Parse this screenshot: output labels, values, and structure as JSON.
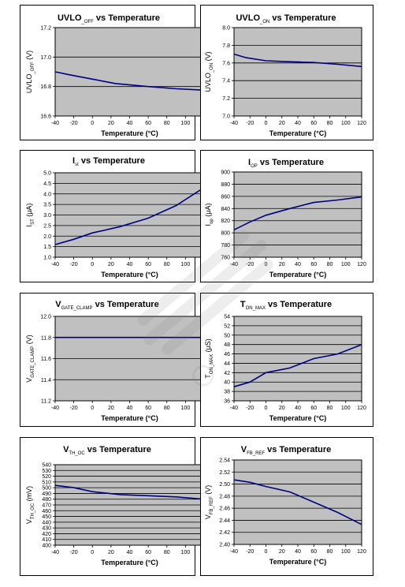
{
  "chart_data": [
    {
      "type": "line",
      "title_main": "UVLO",
      "title_sub": "_OFF",
      "title_rest": " vs Temperature",
      "ylabel_main": "UVLO",
      "ylabel_sub": "_OFF",
      "ylabel_unit": " (V)",
      "xlabel": "Temperature (°C)",
      "xlim": [
        -40,
        120
      ],
      "ylim": [
        16.6,
        17.2
      ],
      "yticks": [
        "16.6",
        "16.8",
        "17.0",
        "17.2"
      ],
      "xticks": [
        "-40",
        "-20",
        "0",
        "20",
        "40",
        "60",
        "80",
        "100",
        "120"
      ],
      "series": [
        {
          "x": [
            -40,
            -25,
            0,
            25,
            60,
            90,
            120
          ],
          "y": [
            16.9,
            16.88,
            16.85,
            16.82,
            16.8,
            16.785,
            16.775
          ]
        }
      ]
    },
    {
      "type": "line",
      "title_main": "UVLO",
      "title_sub": "_ON",
      "title_rest": "  vs Temperature",
      "ylabel_main": "UVLO",
      "ylabel_sub": "_ON",
      "ylabel_unit": " (V)",
      "xlabel": "Temperature (°C)",
      "xlim": [
        -40,
        120
      ],
      "ylim": [
        7.0,
        8.0
      ],
      "yticks": [
        "7.0",
        "7.2",
        "7.4",
        "7.6",
        "7.8",
        "8.0"
      ],
      "xticks": [
        "-40",
        "-20",
        "0",
        "20",
        "40",
        "60",
        "80",
        "100",
        "120"
      ],
      "series": [
        {
          "x": [
            -40,
            -25,
            0,
            25,
            60,
            90,
            120
          ],
          "y": [
            7.7,
            7.66,
            7.625,
            7.615,
            7.605,
            7.585,
            7.56
          ]
        }
      ]
    },
    {
      "type": "line",
      "title_main": "I",
      "title_sub": "st",
      "title_rest": "  vs Temperature",
      "ylabel_main": "I",
      "ylabel_sub": "ST",
      "ylabel_unit": " (μA)",
      "xlabel": "Temperature   (°C)",
      "xlim": [
        -40,
        120
      ],
      "ylim": [
        1.0,
        5.0
      ],
      "yticks": [
        "1.0",
        "1.5",
        "2.0",
        "2.5",
        "3.0",
        "3.5",
        "4.0",
        "4.5",
        "5.0"
      ],
      "xticks": [
        "-40",
        "-20",
        "0",
        "20",
        "40",
        "60",
        "80",
        "100",
        "120"
      ],
      "series": [
        {
          "x": [
            -40,
            -20,
            0,
            30,
            60,
            90,
            120
          ],
          "y": [
            1.6,
            1.85,
            2.15,
            2.45,
            2.85,
            3.45,
            4.3
          ]
        }
      ]
    },
    {
      "type": "line",
      "title_main": "I",
      "title_sub": "OP",
      "title_rest": "  vs Temperature",
      "ylabel_main": "I",
      "ylabel_sub": "op",
      "ylabel_unit": " (μA)",
      "xlabel": "Temperature   (°C)",
      "xlim": [
        -40,
        120
      ],
      "ylim": [
        760,
        900
      ],
      "yticks": [
        "760",
        "780",
        "800",
        "820",
        "840",
        "860",
        "880",
        "900"
      ],
      "xticks": [
        "-40",
        "-20",
        "0",
        "20",
        "40",
        "60",
        "80",
        "100",
        "120"
      ],
      "series": [
        {
          "x": [
            -40,
            -20,
            0,
            30,
            60,
            90,
            120
          ],
          "y": [
            805,
            818,
            829,
            840,
            850,
            854,
            859
          ]
        }
      ]
    },
    {
      "type": "line",
      "title_main": "V",
      "title_sub": "GATE_CLAMP",
      "title_rest": "   vs Temperature",
      "ylabel_main": "V",
      "ylabel_sub": "GATE_CLAMP",
      "ylabel_unit": " (V)",
      "xlabel": "Temperature   (°C)",
      "xlim": [
        -40,
        120
      ],
      "ylim": [
        11.2,
        12.0
      ],
      "yticks": [
        "11.2",
        "11.4",
        "11.6",
        "11.8",
        "12.0"
      ],
      "xticks": [
        "-40",
        "-20",
        "0",
        "20",
        "40",
        "60",
        "80",
        "100",
        "120"
      ],
      "series": [
        {
          "x": [
            -40,
            120
          ],
          "y": [
            11.8,
            11.8
          ]
        }
      ]
    },
    {
      "type": "line",
      "title_main": "T",
      "title_sub": "ON_MAX",
      "title_rest": "  vs Temperature",
      "ylabel_main": "T",
      "ylabel_sub": "ON_MAX",
      "ylabel_unit": " (μS)",
      "xlabel": "Temperature   (°C)",
      "xlim": [
        -40,
        120
      ],
      "ylim": [
        36,
        54
      ],
      "yticks": [
        "36",
        "38",
        "40",
        "42",
        "44",
        "46",
        "48",
        "50",
        "52",
        "54"
      ],
      "xticks": [
        "-40",
        "-20",
        "0",
        "20",
        "40",
        "60",
        "80",
        "100",
        "120"
      ],
      "series": [
        {
          "x": [
            -40,
            -20,
            0,
            30,
            60,
            90,
            120
          ],
          "y": [
            39,
            40,
            42,
            43,
            45,
            46,
            48
          ]
        }
      ]
    },
    {
      "type": "line",
      "title_main": "V",
      "title_sub": "TH_OC",
      "title_rest": " vs Temperature",
      "ylabel_main": "V",
      "ylabel_sub": "TH_OC",
      "ylabel_unit": " (mV)",
      "xlabel": "Temperature (°C)",
      "xlim": [
        -40,
        120
      ],
      "ylim": [
        400,
        540
      ],
      "yticks": [
        "400",
        "410",
        "420",
        "430",
        "440",
        "450",
        "460",
        "470",
        "480",
        "490",
        "500",
        "510",
        "520",
        "530",
        "540"
      ],
      "xticks": [
        "-40",
        "-20",
        "0",
        "20",
        "40",
        "60",
        "80",
        "100",
        "120"
      ],
      "series": [
        {
          "x": [
            -40,
            -20,
            0,
            30,
            60,
            90,
            120
          ],
          "y": [
            504,
            500,
            493,
            488,
            486,
            484,
            480
          ]
        }
      ]
    },
    {
      "type": "line",
      "title_main": "V",
      "title_sub": "FB_REF",
      "title_rest": " vs Temperature",
      "ylabel_main": "V",
      "ylabel_sub": "FB_REF",
      "ylabel_unit": " (V)",
      "xlabel": "Temperature (°C)",
      "xlim": [
        -40,
        120
      ],
      "ylim": [
        2.4,
        2.54
      ],
      "yticks": [
        "2.40",
        "2.42",
        "2.44",
        "2.46",
        "2.48",
        "2.50",
        "2.52",
        "2.54"
      ],
      "xticks": [
        "-40",
        "-20",
        "0",
        "20",
        "40",
        "60",
        "80",
        "100",
        "120"
      ],
      "series": [
        {
          "x": [
            -40,
            -20,
            0,
            30,
            60,
            90,
            120
          ],
          "y": [
            2.507,
            2.503,
            2.496,
            2.487,
            2.47,
            2.453,
            2.433
          ]
        }
      ]
    }
  ]
}
